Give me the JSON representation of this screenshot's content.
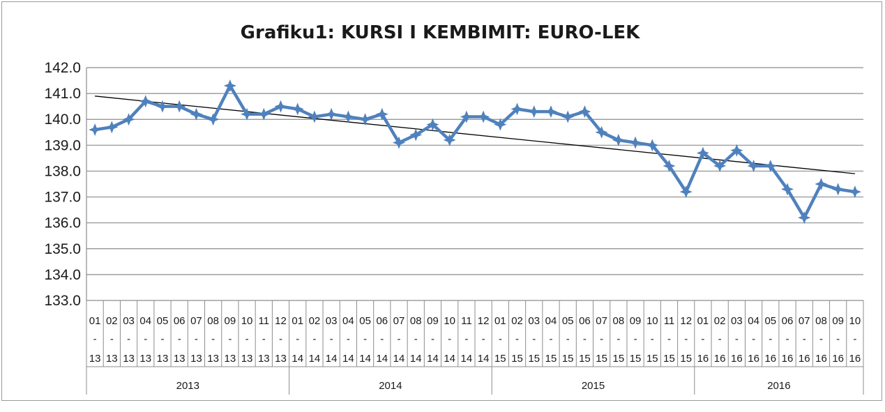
{
  "chart_data": {
    "type": "line",
    "title": "Grafiku1: KURSI I KEMBIMIT: EURO-LEK",
    "ylim": [
      133.0,
      142.0
    ],
    "yticks": [
      "142.0",
      "141.0",
      "140.0",
      "139.0",
      "138.0",
      "137.0",
      "136.0",
      "135.0",
      "134.0",
      "133.0"
    ],
    "grid": true,
    "legend": "none",
    "years": [
      "2013",
      "2014",
      "2015",
      "2016"
    ],
    "x": [
      {
        "m": "01",
        "y": "13"
      },
      {
        "m": "02",
        "y": "13"
      },
      {
        "m": "03",
        "y": "13"
      },
      {
        "m": "04",
        "y": "13"
      },
      {
        "m": "05",
        "y": "13"
      },
      {
        "m": "06",
        "y": "13"
      },
      {
        "m": "07",
        "y": "13"
      },
      {
        "m": "08",
        "y": "13"
      },
      {
        "m": "09",
        "y": "13"
      },
      {
        "m": "10",
        "y": "13"
      },
      {
        "m": "11",
        "y": "13"
      },
      {
        "m": "12",
        "y": "13"
      },
      {
        "m": "01",
        "y": "14"
      },
      {
        "m": "02",
        "y": "14"
      },
      {
        "m": "03",
        "y": "14"
      },
      {
        "m": "04",
        "y": "14"
      },
      {
        "m": "05",
        "y": "14"
      },
      {
        "m": "06",
        "y": "14"
      },
      {
        "m": "07",
        "y": "14"
      },
      {
        "m": "08",
        "y": "14"
      },
      {
        "m": "09",
        "y": "14"
      },
      {
        "m": "10",
        "y": "14"
      },
      {
        "m": "11",
        "y": "14"
      },
      {
        "m": "12",
        "y": "14"
      },
      {
        "m": "01",
        "y": "15"
      },
      {
        "m": "02",
        "y": "15"
      },
      {
        "m": "03",
        "y": "15"
      },
      {
        "m": "04",
        "y": "15"
      },
      {
        "m": "05",
        "y": "15"
      },
      {
        "m": "06",
        "y": "15"
      },
      {
        "m": "07",
        "y": "15"
      },
      {
        "m": "08",
        "y": "15"
      },
      {
        "m": "09",
        "y": "15"
      },
      {
        "m": "10",
        "y": "15"
      },
      {
        "m": "11",
        "y": "15"
      },
      {
        "m": "12",
        "y": "15"
      },
      {
        "m": "01",
        "y": "16"
      },
      {
        "m": "02",
        "y": "16"
      },
      {
        "m": "03",
        "y": "16"
      },
      {
        "m": "04",
        "y": "16"
      },
      {
        "m": "05",
        "y": "16"
      },
      {
        "m": "06",
        "y": "16"
      },
      {
        "m": "07",
        "y": "16"
      },
      {
        "m": "08",
        "y": "16"
      },
      {
        "m": "09",
        "y": "16"
      },
      {
        "m": "10",
        "y": "16"
      }
    ],
    "series": [
      {
        "values": [
          139.6,
          139.7,
          140.0,
          140.7,
          140.5,
          140.5,
          140.2,
          140.0,
          141.3,
          140.2,
          140.2,
          140.5,
          140.4,
          140.1,
          140.2,
          140.1,
          140.0,
          140.2,
          139.1,
          139.4,
          139.8,
          139.2,
          140.1,
          140.1,
          139.8,
          140.4,
          140.3,
          140.3,
          140.1,
          140.3,
          139.5,
          139.2,
          139.1,
          139.0,
          138.2,
          137.2,
          138.7,
          138.2,
          138.8,
          138.2,
          138.2,
          137.3,
          136.2,
          137.5,
          137.3,
          137.2
        ],
        "color": "#4F81BD"
      }
    ],
    "trendline": {
      "type": "linear",
      "color": "#000000",
      "start": 140.9,
      "end": 137.9
    }
  }
}
